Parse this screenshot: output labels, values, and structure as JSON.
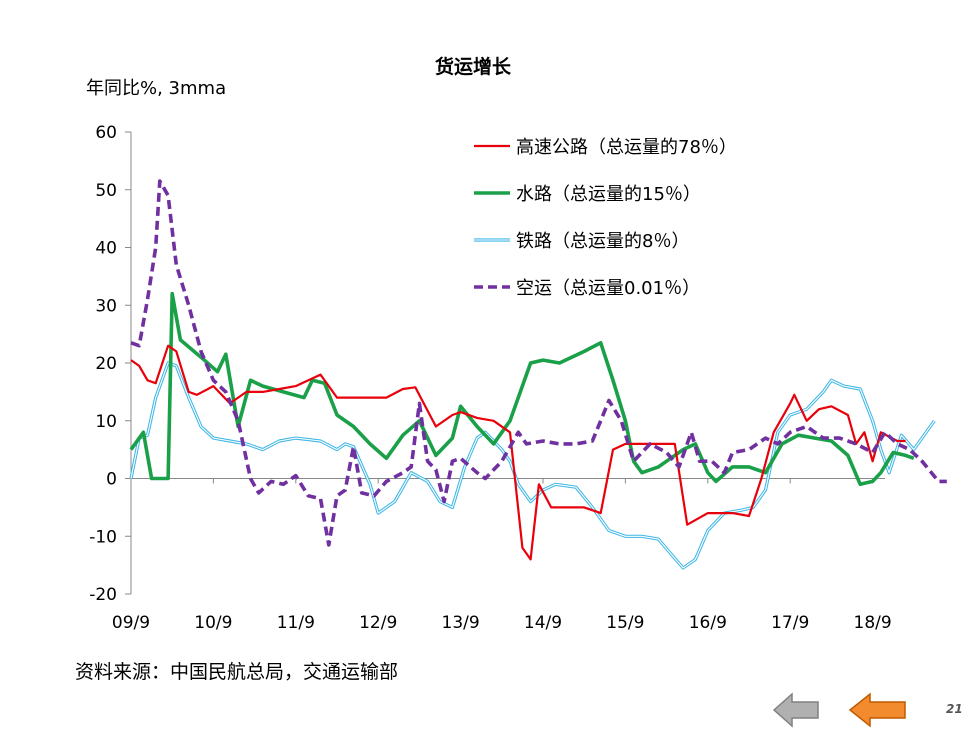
{
  "chart_data": {
    "type": "line",
    "title": "货运增长",
    "ylabel": "年同比%, 3mma",
    "xlabel": "",
    "ylim": [
      -20,
      60
    ],
    "yticks": [
      -20,
      -10,
      0,
      10,
      20,
      30,
      40,
      50,
      60
    ],
    "categories": [
      "09/9",
      "10/9",
      "11/9",
      "12/9",
      "13/9",
      "14/9",
      "15/9",
      "16/9",
      "17/9",
      "18/9"
    ],
    "legend_position": "top-right",
    "grid": false,
    "series": [
      {
        "name": "高速公路（总运量的78％）",
        "color": "#e8000b",
        "style": "solid",
        "points": [
          [
            0,
            20.5
          ],
          [
            0.1,
            19.5
          ],
          [
            0.2,
            17
          ],
          [
            0.3,
            16.5
          ],
          [
            0.45,
            23
          ],
          [
            0.55,
            22
          ],
          [
            0.7,
            15
          ],
          [
            0.8,
            14.5
          ],
          [
            1.0,
            16
          ],
          [
            1.2,
            13
          ],
          [
            1.4,
            15
          ],
          [
            1.6,
            15
          ],
          [
            1.8,
            15.5
          ],
          [
            2.0,
            16
          ],
          [
            2.3,
            18
          ],
          [
            2.5,
            14
          ],
          [
            2.8,
            14
          ],
          [
            3.1,
            14
          ],
          [
            3.3,
            15.5
          ],
          [
            3.45,
            15.8
          ],
          [
            3.7,
            9
          ],
          [
            3.9,
            11
          ],
          [
            4.0,
            11.5
          ],
          [
            4.2,
            10.5
          ],
          [
            4.4,
            10
          ],
          [
            4.6,
            8
          ],
          [
            4.75,
            -12
          ],
          [
            4.85,
            -14
          ],
          [
            4.95,
            -1
          ],
          [
            5.1,
            -5
          ],
          [
            5.3,
            -5
          ],
          [
            5.5,
            -5
          ],
          [
            5.7,
            -6
          ],
          [
            5.85,
            5
          ],
          [
            6.0,
            6
          ],
          [
            6.2,
            6
          ],
          [
            6.4,
            6
          ],
          [
            6.6,
            6
          ],
          [
            6.75,
            -8
          ],
          [
            7.0,
            -6
          ],
          [
            7.3,
            -6
          ],
          [
            7.5,
            -6.5
          ],
          [
            7.65,
            0
          ],
          [
            7.8,
            8
          ],
          [
            8.0,
            13
          ],
          [
            8.05,
            14.5
          ],
          [
            8.2,
            10
          ],
          [
            8.35,
            12
          ],
          [
            8.5,
            12.5
          ],
          [
            8.7,
            11
          ],
          [
            8.8,
            6
          ],
          [
            8.9,
            8
          ],
          [
            9.0,
            3
          ],
          [
            9.1,
            8
          ],
          [
            9.3,
            6.5
          ],
          [
            9.4,
            6.5
          ]
        ]
      },
      {
        "name": "水路（总运量的15％）",
        "color": "#1aa048",
        "style": "solid-thick",
        "points": [
          [
            0,
            5
          ],
          [
            0.15,
            8
          ],
          [
            0.25,
            0
          ],
          [
            0.45,
            0
          ],
          [
            0.5,
            32
          ],
          [
            0.6,
            24
          ],
          [
            0.85,
            21
          ],
          [
            1.05,
            18.5
          ],
          [
            1.15,
            21.5
          ],
          [
            1.3,
            9
          ],
          [
            1.45,
            17
          ],
          [
            1.6,
            16
          ],
          [
            1.85,
            15
          ],
          [
            2.1,
            14
          ],
          [
            2.2,
            17
          ],
          [
            2.35,
            16.5
          ],
          [
            2.5,
            11
          ],
          [
            2.7,
            9
          ],
          [
            2.9,
            6
          ],
          [
            3.1,
            3.5
          ],
          [
            3.3,
            7.5
          ],
          [
            3.5,
            10
          ],
          [
            3.7,
            4
          ],
          [
            3.9,
            7
          ],
          [
            4.0,
            12.5
          ],
          [
            4.2,
            9
          ],
          [
            4.4,
            6
          ],
          [
            4.6,
            10
          ],
          [
            4.85,
            20
          ],
          [
            5.0,
            20.5
          ],
          [
            5.2,
            20
          ],
          [
            5.5,
            22
          ],
          [
            5.7,
            23.5
          ],
          [
            5.85,
            17
          ],
          [
            6.0,
            10
          ],
          [
            6.1,
            3
          ],
          [
            6.2,
            1
          ],
          [
            6.4,
            2
          ],
          [
            6.5,
            3
          ],
          [
            6.7,
            5
          ],
          [
            6.85,
            6
          ],
          [
            7.0,
            1
          ],
          [
            7.1,
            -0.5
          ],
          [
            7.3,
            2
          ],
          [
            7.5,
            2
          ],
          [
            7.7,
            1
          ],
          [
            7.9,
            6
          ],
          [
            8.1,
            7.5
          ],
          [
            8.3,
            7
          ],
          [
            8.5,
            6.5
          ],
          [
            8.7,
            4
          ],
          [
            8.85,
            -1
          ],
          [
            9.0,
            -0.5
          ],
          [
            9.1,
            1
          ],
          [
            9.25,
            4.5
          ],
          [
            9.4,
            4
          ],
          [
            9.5,
            3.5
          ]
        ]
      },
      {
        "name": "铁路（总运量的8％）",
        "color": "#3fb7e6",
        "style": "double",
        "points": [
          [
            0,
            0
          ],
          [
            0.1,
            7
          ],
          [
            0.2,
            7.5
          ],
          [
            0.3,
            14
          ],
          [
            0.45,
            20
          ],
          [
            0.55,
            19.5
          ],
          [
            0.7,
            14
          ],
          [
            0.85,
            9
          ],
          [
            1.0,
            7
          ],
          [
            1.2,
            6.5
          ],
          [
            1.4,
            6
          ],
          [
            1.6,
            5
          ],
          [
            1.8,
            6.5
          ],
          [
            2.0,
            7
          ],
          [
            2.3,
            6.5
          ],
          [
            2.5,
            5
          ],
          [
            2.6,
            6
          ],
          [
            2.7,
            5.5
          ],
          [
            2.9,
            -1
          ],
          [
            3.0,
            -6
          ],
          [
            3.2,
            -4
          ],
          [
            3.4,
            1
          ],
          [
            3.6,
            -0.5
          ],
          [
            3.75,
            -4
          ],
          [
            3.9,
            -5
          ],
          [
            4.05,
            2
          ],
          [
            4.2,
            7
          ],
          [
            4.3,
            8
          ],
          [
            4.5,
            5
          ],
          [
            4.6,
            3
          ],
          [
            4.7,
            -1
          ],
          [
            4.85,
            -4
          ],
          [
            5.0,
            -2
          ],
          [
            5.15,
            -1
          ],
          [
            5.4,
            -1.5
          ],
          [
            5.6,
            -5
          ],
          [
            5.8,
            -9
          ],
          [
            6.0,
            -10
          ],
          [
            6.2,
            -10
          ],
          [
            6.4,
            -10.5
          ],
          [
            6.55,
            -13
          ],
          [
            6.7,
            -15.5
          ],
          [
            6.85,
            -14
          ],
          [
            7.0,
            -9
          ],
          [
            7.2,
            -6
          ],
          [
            7.4,
            -5.5
          ],
          [
            7.55,
            -5
          ],
          [
            7.7,
            -2
          ],
          [
            7.85,
            8
          ],
          [
            8.0,
            11
          ],
          [
            8.2,
            12
          ],
          [
            8.4,
            15
          ],
          [
            8.5,
            17
          ],
          [
            8.65,
            16
          ],
          [
            8.85,
            15.5
          ],
          [
            9.0,
            10
          ],
          [
            9.1,
            5
          ],
          [
            9.2,
            1
          ],
          [
            9.35,
            7.5
          ],
          [
            9.5,
            5
          ],
          [
            9.7,
            9
          ],
          [
            9.75,
            10
          ]
        ]
      },
      {
        "name": "空运（总运量0.01％）",
        "color": "#7030a0",
        "style": "dashed",
        "points": [
          [
            0,
            23.5
          ],
          [
            0.1,
            23
          ],
          [
            0.2,
            31
          ],
          [
            0.3,
            40
          ],
          [
            0.35,
            51.5
          ],
          [
            0.45,
            49
          ],
          [
            0.55,
            37
          ],
          [
            0.7,
            30
          ],
          [
            0.85,
            22
          ],
          [
            1.0,
            17
          ],
          [
            1.15,
            15
          ],
          [
            1.3,
            10
          ],
          [
            1.45,
            0
          ],
          [
            1.55,
            -2.5
          ],
          [
            1.7,
            -0.5
          ],
          [
            1.85,
            -1
          ],
          [
            2.0,
            0.5
          ],
          [
            2.15,
            -3
          ],
          [
            2.3,
            -3.5
          ],
          [
            2.4,
            -11.5
          ],
          [
            2.5,
            -3
          ],
          [
            2.6,
            -2
          ],
          [
            2.7,
            5.5
          ],
          [
            2.8,
            -2.5
          ],
          [
            2.95,
            -3
          ],
          [
            3.1,
            -0.5
          ],
          [
            3.3,
            1
          ],
          [
            3.4,
            2
          ],
          [
            3.5,
            13
          ],
          [
            3.6,
            3
          ],
          [
            3.7,
            1.5
          ],
          [
            3.8,
            -4
          ],
          [
            3.9,
            3
          ],
          [
            4.0,
            3.5
          ],
          [
            4.2,
            1
          ],
          [
            4.3,
            0
          ],
          [
            4.5,
            3
          ],
          [
            4.7,
            8
          ],
          [
            4.8,
            6
          ],
          [
            5.0,
            6.5
          ],
          [
            5.2,
            6
          ],
          [
            5.4,
            6
          ],
          [
            5.6,
            6.5
          ],
          [
            5.7,
            10
          ],
          [
            5.8,
            13.5
          ],
          [
            5.95,
            10
          ],
          [
            6.1,
            3
          ],
          [
            6.3,
            6
          ],
          [
            6.5,
            4.5
          ],
          [
            6.65,
            2
          ],
          [
            6.8,
            8
          ],
          [
            6.9,
            3
          ],
          [
            7.05,
            3
          ],
          [
            7.2,
            1
          ],
          [
            7.3,
            4.5
          ],
          [
            7.5,
            5
          ],
          [
            7.7,
            7
          ],
          [
            7.85,
            6
          ],
          [
            8.0,
            8
          ],
          [
            8.2,
            9
          ],
          [
            8.4,
            7
          ],
          [
            8.6,
            7
          ],
          [
            8.8,
            6
          ],
          [
            9.0,
            4.5
          ],
          [
            9.15,
            8
          ],
          [
            9.3,
            6
          ],
          [
            9.45,
            5
          ],
          [
            9.6,
            3
          ],
          [
            9.8,
            -0.5
          ],
          [
            9.9,
            -0.5
          ]
        ]
      }
    ]
  },
  "source_note": "资料来源：中国民航总局，交通运输部",
  "navigation": {
    "prev_label": "previous-slide",
    "next_label": "next-slide",
    "prev_color": "#b0b0b0",
    "next_color": "#f28a2e"
  },
  "page_number": "21"
}
